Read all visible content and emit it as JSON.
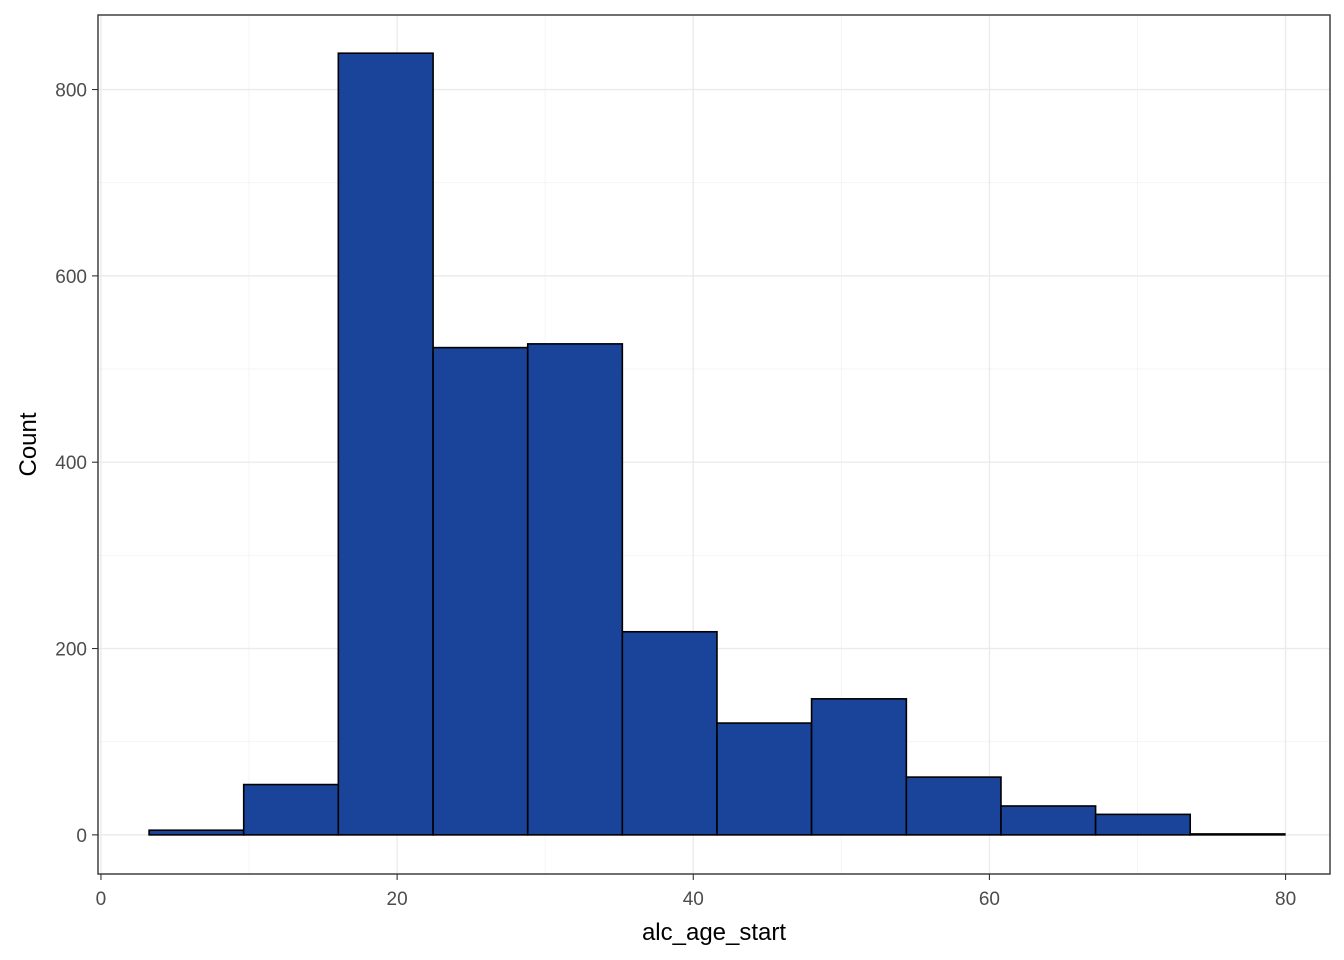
{
  "chart_data": {
    "type": "bar",
    "subtype": "histogram",
    "title": "",
    "xlabel": "alc_age_start",
    "ylabel": "Count",
    "xlim": [
      -0.2,
      83
    ],
    "ylim": [
      -42,
      880
    ],
    "x_ticks": [
      0,
      20,
      40,
      60,
      80
    ],
    "x_tick_labels": [
      "0",
      "20",
      "40",
      "60",
      "80"
    ],
    "y_ticks": [
      0,
      200,
      400,
      600,
      800
    ],
    "y_tick_labels": [
      "0",
      "200",
      "400",
      "600",
      "800"
    ],
    "grid": true,
    "legend": "none",
    "colors": {
      "fill": "#1a4499",
      "outline": "#000000",
      "panel_border": "#333333"
    },
    "bins": [
      {
        "x_start": 3.25,
        "x_end": 9.64,
        "count": 5
      },
      {
        "x_start": 9.64,
        "x_end": 16.03,
        "count": 54
      },
      {
        "x_start": 16.03,
        "x_end": 22.43,
        "count": 839
      },
      {
        "x_start": 22.43,
        "x_end": 28.82,
        "count": 523
      },
      {
        "x_start": 28.82,
        "x_end": 35.21,
        "count": 527
      },
      {
        "x_start": 35.21,
        "x_end": 41.6,
        "count": 218
      },
      {
        "x_start": 41.6,
        "x_end": 47.99,
        "count": 120
      },
      {
        "x_start": 47.99,
        "x_end": 54.39,
        "count": 146
      },
      {
        "x_start": 54.39,
        "x_end": 60.78,
        "count": 62
      },
      {
        "x_start": 60.78,
        "x_end": 67.17,
        "count": 31
      },
      {
        "x_start": 67.17,
        "x_end": 73.56,
        "count": 22
      },
      {
        "x_start": 73.56,
        "x_end": 79.95,
        "count": 1
      }
    ]
  }
}
